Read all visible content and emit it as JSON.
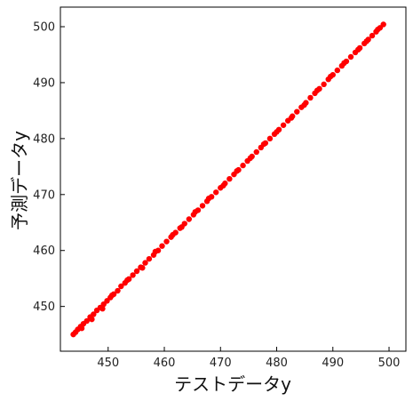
{
  "chart_data": {
    "type": "scatter",
    "title": "",
    "xlabel": "テストデータy",
    "ylabel": "予測データy",
    "xlim": [
      441.5,
      503.0
    ],
    "ylim": [
      442.0,
      503.5
    ],
    "xticks": [
      450,
      460,
      470,
      480,
      490,
      500
    ],
    "yticks": [
      450,
      460,
      470,
      480,
      490,
      500
    ],
    "grid": false,
    "legend": "none",
    "marker_color": "#ff0000",
    "series": [
      {
        "values_xy": [
          [
            443.8,
            445.0
          ],
          [
            444.2,
            445.4
          ],
          [
            444.6,
            445.9
          ],
          [
            445.1,
            446.4
          ],
          [
            445.6,
            446.9
          ],
          [
            446.2,
            447.4
          ],
          [
            446.8,
            448.1
          ],
          [
            447.4,
            448.6
          ],
          [
            448.0,
            449.3
          ],
          [
            448.6,
            449.8
          ],
          [
            449.2,
            450.4
          ],
          [
            449.8,
            451.0
          ],
          [
            450.4,
            451.6
          ],
          [
            451.0,
            452.2
          ],
          [
            451.7,
            452.8
          ],
          [
            452.3,
            453.6
          ],
          [
            453.0,
            454.2
          ],
          [
            453.7,
            454.9
          ],
          [
            454.4,
            455.6
          ],
          [
            455.1,
            456.3
          ],
          [
            455.8,
            457.0
          ],
          [
            456.6,
            457.8
          ],
          [
            457.3,
            458.5
          ],
          [
            458.1,
            459.2
          ],
          [
            458.9,
            460.0
          ],
          [
            459.6,
            460.8
          ],
          [
            460.4,
            461.6
          ],
          [
            461.2,
            462.4
          ],
          [
            462.0,
            463.2
          ],
          [
            462.8,
            464.0
          ],
          [
            463.6,
            464.8
          ],
          [
            464.4,
            465.6
          ],
          [
            465.2,
            466.4
          ],
          [
            466.0,
            467.2
          ],
          [
            466.8,
            468.0
          ],
          [
            467.6,
            468.8
          ],
          [
            468.4,
            469.6
          ],
          [
            469.2,
            470.4
          ],
          [
            470.0,
            471.2
          ],
          [
            470.8,
            472.0
          ],
          [
            471.6,
            472.8
          ],
          [
            472.4,
            473.6
          ],
          [
            473.2,
            474.4
          ],
          [
            474.0,
            475.2
          ],
          [
            474.8,
            476.0
          ],
          [
            475.6,
            476.8
          ],
          [
            476.4,
            477.6
          ],
          [
            477.2,
            478.4
          ],
          [
            478.0,
            479.2
          ],
          [
            478.8,
            480.0
          ],
          [
            479.6,
            480.8
          ],
          [
            480.4,
            481.6
          ],
          [
            481.2,
            482.4
          ],
          [
            482.0,
            483.2
          ],
          [
            482.8,
            484.0
          ],
          [
            483.6,
            484.8
          ],
          [
            484.4,
            485.6
          ],
          [
            485.2,
            486.4
          ],
          [
            486.0,
            487.3
          ],
          [
            486.8,
            488.1
          ],
          [
            487.6,
            488.9
          ],
          [
            488.4,
            489.7
          ],
          [
            489.2,
            490.6
          ],
          [
            490.0,
            491.4
          ],
          [
            490.8,
            492.2
          ],
          [
            491.6,
            493.0
          ],
          [
            492.4,
            493.8
          ],
          [
            493.2,
            494.6
          ],
          [
            494.0,
            495.4
          ],
          [
            494.8,
            496.2
          ],
          [
            495.6,
            497.0
          ],
          [
            496.3,
            497.7
          ],
          [
            497.0,
            498.4
          ],
          [
            497.7,
            499.1
          ],
          [
            498.4,
            499.8
          ],
          [
            499.0,
            500.4
          ],
          [
            449.0,
            449.6
          ],
          [
            453.4,
            454.7
          ],
          [
            458.4,
            459.8
          ],
          [
            463.1,
            464.2
          ],
          [
            467.9,
            469.3
          ],
          [
            472.9,
            474.2
          ],
          [
            477.7,
            479.0
          ],
          [
            482.6,
            483.7
          ],
          [
            487.2,
            488.6
          ],
          [
            492.0,
            493.5
          ],
          [
            496.0,
            497.4
          ],
          [
            445.3,
            446.1
          ],
          [
            447.1,
            447.7
          ],
          [
            450.7,
            452.0
          ],
          [
            456.1,
            456.9
          ],
          [
            461.5,
            462.8
          ],
          [
            465.5,
            466.9
          ],
          [
            470.5,
            471.6
          ],
          [
            475.3,
            476.5
          ],
          [
            480.0,
            481.2
          ],
          [
            484.9,
            486.0
          ],
          [
            489.6,
            491.1
          ],
          [
            494.5,
            495.9
          ],
          [
            498.0,
            499.5
          ]
        ]
      }
    ]
  }
}
